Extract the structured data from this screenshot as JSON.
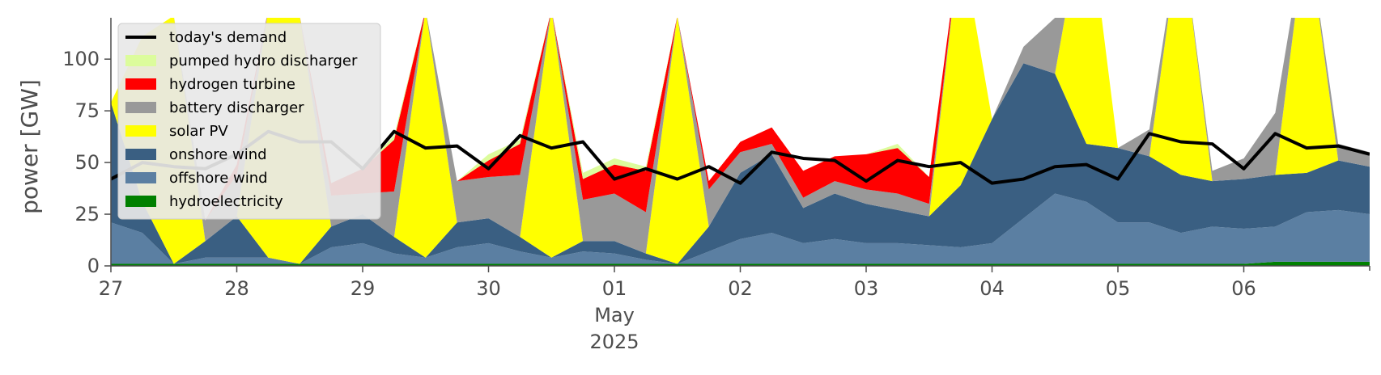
{
  "chart_data": {
    "type": "area",
    "ylabel": "power [GW]",
    "xlabel": "",
    "ylim": [
      0,
      120
    ],
    "yticks": [
      0,
      25,
      50,
      75,
      100
    ],
    "xlim": [
      "2025-04-27 00:00",
      "2025-05-07 00:00"
    ],
    "xticks": [
      {
        "date": "2025-04-27",
        "label": "27"
      },
      {
        "date": "2025-04-28",
        "label": "28"
      },
      {
        "date": "2025-04-29",
        "label": "29"
      },
      {
        "date": "2025-04-30",
        "label": "30"
      },
      {
        "date": "2025-05-01",
        "label": "01",
        "sublabel": "May",
        "sublabel2": "2025"
      },
      {
        "date": "2025-05-02",
        "label": "02"
      },
      {
        "date": "2025-05-03",
        "label": "03"
      },
      {
        "date": "2025-05-04",
        "label": "04"
      },
      {
        "date": "2025-05-05",
        "label": "05"
      },
      {
        "date": "2025-05-06",
        "label": "06"
      }
    ],
    "grid": false,
    "legend_position": "upper-left",
    "x": [
      "27 Apr 00:00",
      "27 Apr 06:00",
      "27 Apr 12:00",
      "27 Apr 18:00",
      "28 Apr 00:00",
      "28 Apr 06:00",
      "28 Apr 12:00",
      "28 Apr 18:00",
      "29 Apr 00:00",
      "29 Apr 06:00",
      "29 Apr 12:00",
      "29 Apr 18:00",
      "30 Apr 00:00",
      "30 Apr 06:00",
      "30 Apr 12:00",
      "30 Apr 18:00",
      "01 May 00:00",
      "01 May 06:00",
      "01 May 12:00",
      "01 May 18:00",
      "02 May 00:00",
      "02 May 06:00",
      "02 May 12:00",
      "02 May 18:00",
      "03 May 00:00",
      "03 May 06:00",
      "03 May 12:00",
      "03 May 18:00",
      "04 May 00:00",
      "04 May 06:00",
      "04 May 12:00",
      "04 May 18:00",
      "05 May 00:00",
      "05 May 06:00",
      "05 May 12:00",
      "05 May 18:00",
      "06 May 00:00",
      "06 May 06:00",
      "06 May 12:00",
      "06 May 18:00",
      "07 May 00:00"
    ],
    "stack_series": [
      {
        "name": "hydroelectricity",
        "color": "#008000",
        "values": [
          1,
          1,
          1,
          1,
          1,
          1,
          1,
          1,
          1,
          1,
          1,
          1,
          1,
          1,
          1,
          1,
          1,
          1,
          1,
          1,
          1,
          1,
          1,
          1,
          1,
          1,
          1,
          1,
          1,
          1,
          1,
          1,
          1,
          1,
          1,
          1,
          1,
          2,
          2,
          2,
          2
        ]
      },
      {
        "name": "offshore wind",
        "color": "#5b7fa2",
        "values": [
          20,
          15,
          0,
          3,
          3,
          3,
          0,
          8,
          10,
          5,
          3,
          8,
          10,
          6,
          3,
          6,
          5,
          2,
          0,
          6,
          12,
          15,
          10,
          12,
          10,
          10,
          9,
          8,
          10,
          22,
          34,
          30,
          20,
          20,
          15,
          18,
          17,
          17,
          24,
          25,
          23
        ]
      },
      {
        "name": "onshore wind",
        "color": "#3a5f82",
        "values": [
          58,
          15,
          0,
          8,
          20,
          0,
          0,
          10,
          14,
          8,
          0,
          12,
          12,
          7,
          0,
          5,
          6,
          3,
          0,
          12,
          32,
          38,
          17,
          22,
          19,
          16,
          14,
          30,
          60,
          75,
          58,
          28,
          36,
          32,
          28,
          22,
          24,
          25,
          19,
          24,
          23
        ]
      },
      {
        "name": "solar PV",
        "color": "#ffff00",
        "values": [
          0,
          80,
          120,
          0,
          0,
          120,
          120,
          0,
          0,
          0,
          120,
          0,
          0,
          0,
          120,
          0,
          0,
          0,
          120,
          0,
          0,
          0,
          0,
          0,
          0,
          0,
          0,
          120,
          0,
          0,
          0,
          120,
          0,
          0,
          120,
          0,
          0,
          0,
          120,
          0,
          0
        ]
      },
      {
        "name": "battery discharger",
        "color": "#999999",
        "values": [
          0,
          0,
          0,
          10,
          20,
          0,
          0,
          15,
          10,
          22,
          0,
          20,
          20,
          30,
          0,
          20,
          23,
          20,
          0,
          18,
          10,
          5,
          5,
          6,
          7,
          8,
          6,
          0,
          0,
          8,
          27,
          0,
          0,
          13,
          0,
          5,
          10,
          30,
          0,
          8,
          7
        ]
      },
      {
        "name": "hydrogen turbine",
        "color": "#ff0000",
        "values": [
          0,
          0,
          0,
          0,
          5,
          0,
          0,
          6,
          12,
          25,
          0,
          0,
          8,
          15,
          0,
          10,
          14,
          20,
          0,
          4,
          5,
          8,
          13,
          12,
          17,
          22,
          13,
          0,
          0,
          0,
          0,
          0,
          0,
          0,
          0,
          0,
          0,
          0,
          0,
          0,
          0
        ]
      },
      {
        "name": "pumped hydro discharger",
        "color": "#dcfc9c",
        "values": [
          0,
          0,
          0,
          0,
          0,
          0,
          0,
          0,
          0,
          2,
          0,
          0,
          3,
          2,
          0,
          3,
          3,
          2,
          0,
          0,
          0,
          0,
          0,
          0,
          0,
          2,
          0,
          0,
          0,
          0,
          0,
          0,
          0,
          0,
          0,
          0,
          0,
          0,
          0,
          0,
          0
        ]
      }
    ],
    "line_series": [
      {
        "name": "today's demand",
        "color": "#000000",
        "values": [
          42,
          50,
          48,
          47,
          54,
          65,
          60,
          60,
          47,
          65,
          57,
          58,
          47,
          63,
          57,
          60,
          42,
          47,
          42,
          48,
          40,
          55,
          52,
          51,
          41,
          51,
          48,
          50,
          40,
          42,
          48,
          49,
          42,
          64,
          60,
          59,
          47,
          64,
          57,
          58,
          54
        ]
      }
    ],
    "legend": [
      {
        "label": "today's demand",
        "kind": "line",
        "color": "#000000"
      },
      {
        "label": "pumped hydro discharger",
        "kind": "patch",
        "color": "#dcfc9c"
      },
      {
        "label": "hydrogen turbine",
        "kind": "patch",
        "color": "#ff0000"
      },
      {
        "label": "battery discharger",
        "kind": "patch",
        "color": "#999999"
      },
      {
        "label": "solar PV",
        "kind": "patch",
        "color": "#ffff00"
      },
      {
        "label": "onshore wind",
        "kind": "patch",
        "color": "#3a5f82"
      },
      {
        "label": "offshore wind",
        "kind": "patch",
        "color": "#5b7fa2"
      },
      {
        "label": "hydroelectricity",
        "kind": "patch",
        "color": "#008000"
      }
    ]
  }
}
